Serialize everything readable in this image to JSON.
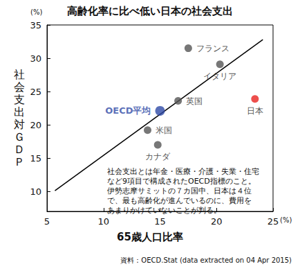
{
  "chart_data": {
    "type": "scatter",
    "title": "高齢化率に比べ低い日本の社会支出",
    "x_label": "65歳人口比率",
    "y_label": "社会支出対ＧＤＰ",
    "x_unit": "(%)",
    "y_unit": "(%)",
    "xlim": [
      5,
      25
    ],
    "xticks": [
      5,
      10,
      15,
      20,
      25
    ],
    "ylim": [
      7,
      35
    ],
    "yticks": [
      10,
      15,
      20,
      25,
      30,
      35
    ],
    "grid": false,
    "points": [
      {
        "name": "フランス",
        "x": 17.5,
        "y": 31.5,
        "color": "#555555"
      },
      {
        "name": "イタリア",
        "x": 20.3,
        "y": 29.1,
        "color": "#555555"
      },
      {
        "name": "英国",
        "x": 16.6,
        "y": 23.6,
        "color": "#555555"
      },
      {
        "name": "OECD平均",
        "x": 15.0,
        "y": 22.1,
        "color": "#2e4aa6"
      },
      {
        "name": "米国",
        "x": 13.9,
        "y": 19.2,
        "color": "#555555"
      },
      {
        "name": "カナダ",
        "x": 14.8,
        "y": 17.0,
        "color": "#555555"
      },
      {
        "name": "日本",
        "x": 23.4,
        "y": 23.9,
        "color": "#e8231f"
      }
    ],
    "trend_line": {
      "x": [
        5.7,
        24.1
      ],
      "y": [
        10.1,
        32.8
      ],
      "color": "#000000"
    },
    "annotation": [
      "社会支出とは年金・医療・介護・失業・住宅",
      "など9項目で構成されたOECD指標のこと。",
      "伊勢志摩サミットの７カ国中、日本は４位",
      "で、最も高齢化が進んでいるのに、費用を",
      "あまりかけていないことが判る。"
    ],
    "source": "資料：OECD.Stat (data extracted on 04 Apr 2015)"
  }
}
